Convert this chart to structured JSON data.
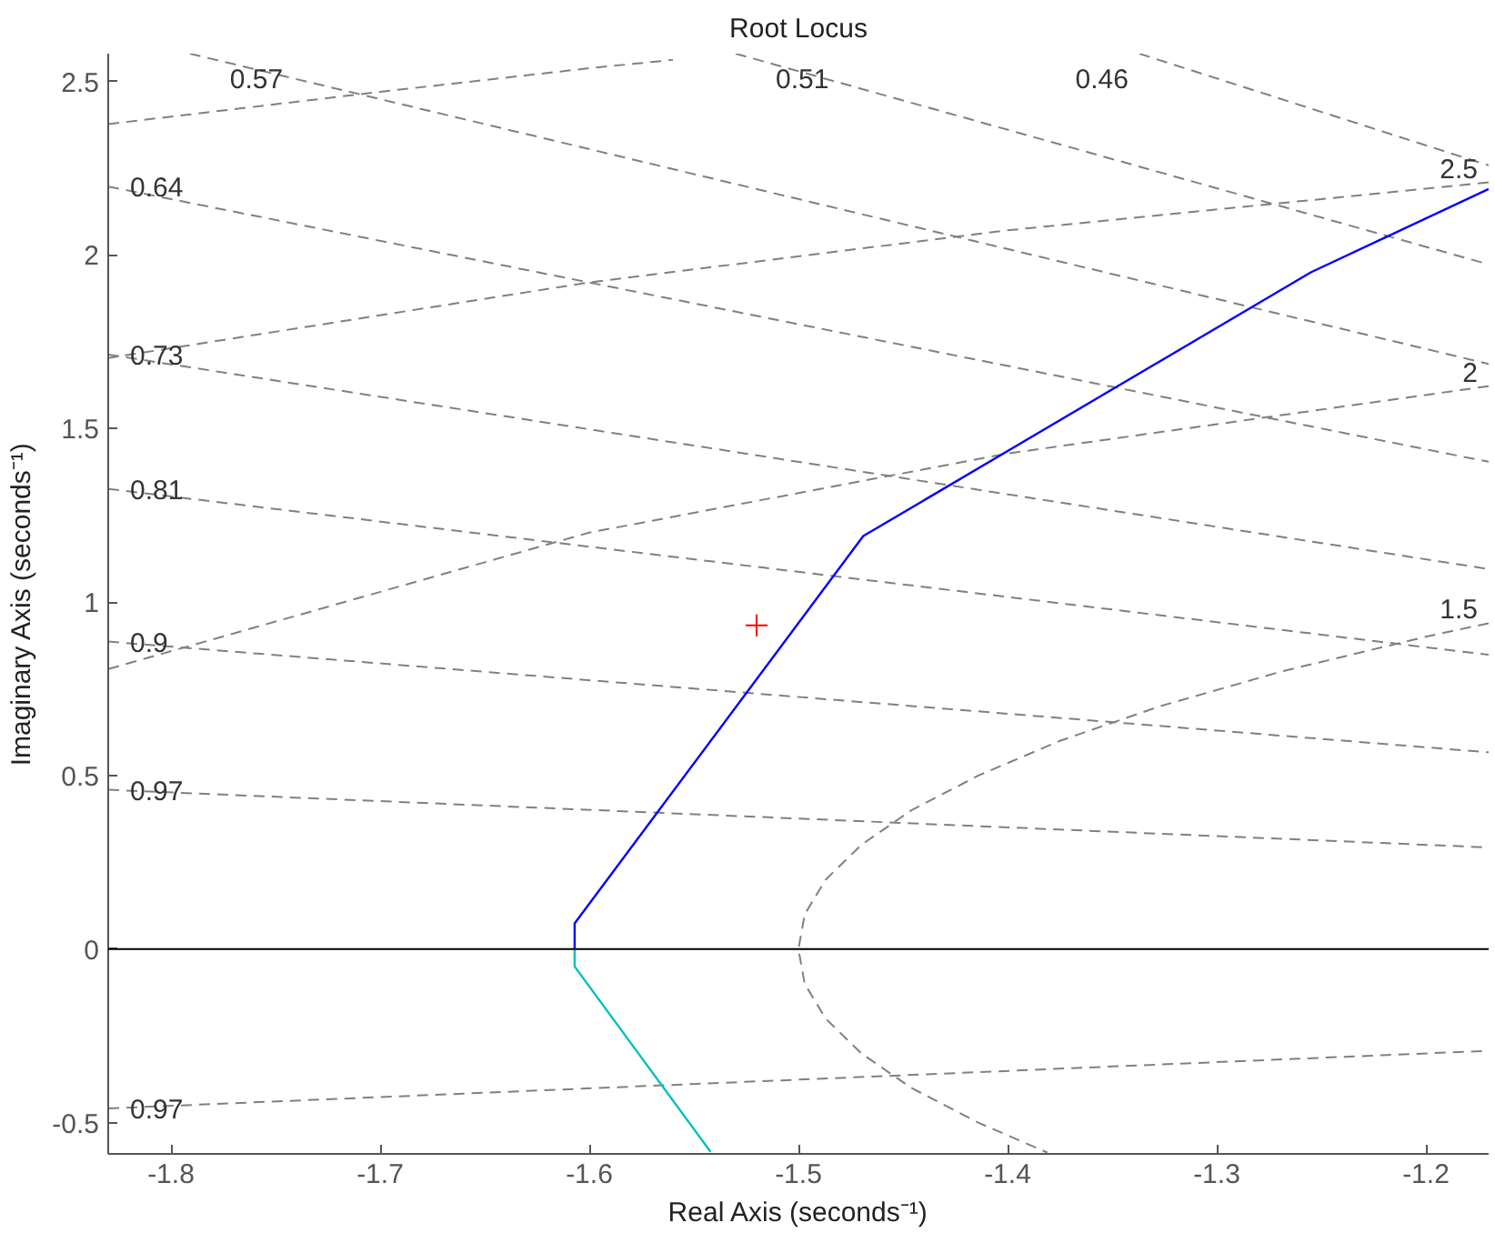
{
  "chart_data": {
    "type": "line",
    "title": "Root Locus",
    "xlabel": "Real Axis (seconds⁻¹)",
    "ylabel": "Imaginary Axis (seconds⁻¹)",
    "xlim": [
      -1.83,
      -1.17
    ],
    "ylim": [
      -0.59,
      2.58
    ],
    "xticks": [
      -1.8,
      -1.7,
      -1.6,
      -1.5,
      -1.4,
      -1.3,
      -1.2
    ],
    "yticks": [
      -0.5,
      0,
      0.5,
      1,
      1.5,
      2,
      2.5
    ],
    "grid": false,
    "ref_lines": [
      {
        "axis": "y",
        "value": 0,
        "color": "#000000"
      }
    ],
    "series": [
      {
        "name": "0.97",
        "color": "#808080",
        "line_style": "dashed",
        "x": [
          -1.83,
          -1.17
        ],
        "values": [
          0.459,
          0.293
        ]
      },
      {
        "name": "0.9",
        "color": "#808080",
        "line_style": "dashed",
        "x": [
          -1.83,
          -1.17
        ],
        "values": [
          0.886,
          0.567
        ]
      },
      {
        "name": "0.81",
        "color": "#808080",
        "line_style": "dashed",
        "x": [
          -1.83,
          -1.17
        ],
        "values": [
          1.326,
          0.848
        ]
      },
      {
        "name": "0.73",
        "color": "#808080",
        "line_style": "dashed",
        "x": [
          -1.83,
          -1.17
        ],
        "values": [
          1.713,
          1.095
        ]
      },
      {
        "name": "0.64",
        "color": "#808080",
        "line_style": "dashed",
        "x": [
          -1.83,
          -1.17
        ],
        "values": [
          2.197,
          1.404
        ]
      },
      {
        "name": "0.57",
        "color": "#808080",
        "line_style": "dashed",
        "x": [
          -1.791,
          -1.17
        ],
        "values": [
          2.58,
          1.686
        ]
      },
      {
        "name": "0.51",
        "color": "#808080",
        "line_style": "dashed",
        "x": [
          -1.53,
          -1.17
        ],
        "values": [
          2.58,
          1.973
        ]
      },
      {
        "name": "0.46",
        "color": "#808080",
        "line_style": "dashed",
        "x": [
          -1.337,
          -1.17
        ],
        "values": [
          2.58,
          2.258
        ]
      },
      {
        "name": "0.97",
        "color": "#808080",
        "line_style": "dashed",
        "x": [
          -1.83,
          -1.17
        ],
        "values": [
          -0.459,
          -0.293
        ]
      },
      {
        "name": "1.5",
        "color": "#808080",
        "line_style": "dashed",
        "x": [
          -1.17,
          -1.2,
          -1.269,
          -1.327,
          -1.375,
          -1.414,
          -1.446,
          -1.47,
          -1.487,
          -1.497,
          -1.5,
          -1.497,
          -1.487,
          -1.47,
          -1.446,
          -1.414,
          -1.381
        ],
        "values": [
          0.939,
          0.9,
          0.8,
          0.7,
          0.6,
          0.5,
          0.4,
          0.3,
          0.2,
          0.1,
          0,
          -0.1,
          -0.2,
          -0.3,
          -0.4,
          -0.5,
          -0.586
        ]
      },
      {
        "name": "2",
        "color": "#808080",
        "line_style": "dashed",
        "x": [
          -1.17,
          -1.4,
          -1.6,
          -1.83
        ],
        "values": [
          1.622,
          1.428,
          1.2,
          0.807
        ]
      },
      {
        "name": "2.5",
        "color": "#808080",
        "line_style": "dashed",
        "x": [
          -1.17,
          -1.4,
          -1.6,
          -1.83
        ],
        "values": [
          2.209,
          2.071,
          1.921,
          1.703
        ]
      },
      {
        "color": "#808080",
        "line_style": "dashed",
        "x": [
          -1.83,
          -1.7,
          -1.6,
          -1.56
        ],
        "values": [
          2.377,
          2.47,
          2.538,
          2.562
        ]
      },
      {
        "color": "#0000ff",
        "line_style": "solid",
        "x": [
          -1.607,
          -1.607,
          -1.469,
          -1.255,
          -1.17
        ],
        "values": [
          0,
          0.074,
          1.19,
          1.95,
          2.19
        ]
      },
      {
        "color": "#00bfbf",
        "line_style": "solid",
        "x": [
          -1.607,
          -1.607,
          -1.542
        ],
        "values": [
          0,
          -0.05,
          -0.584
        ]
      },
      {
        "type": "scatter",
        "marker": "cross",
        "color": "#ff0000",
        "x": [
          -1.52
        ],
        "values": [
          0.933
        ]
      }
    ]
  }
}
